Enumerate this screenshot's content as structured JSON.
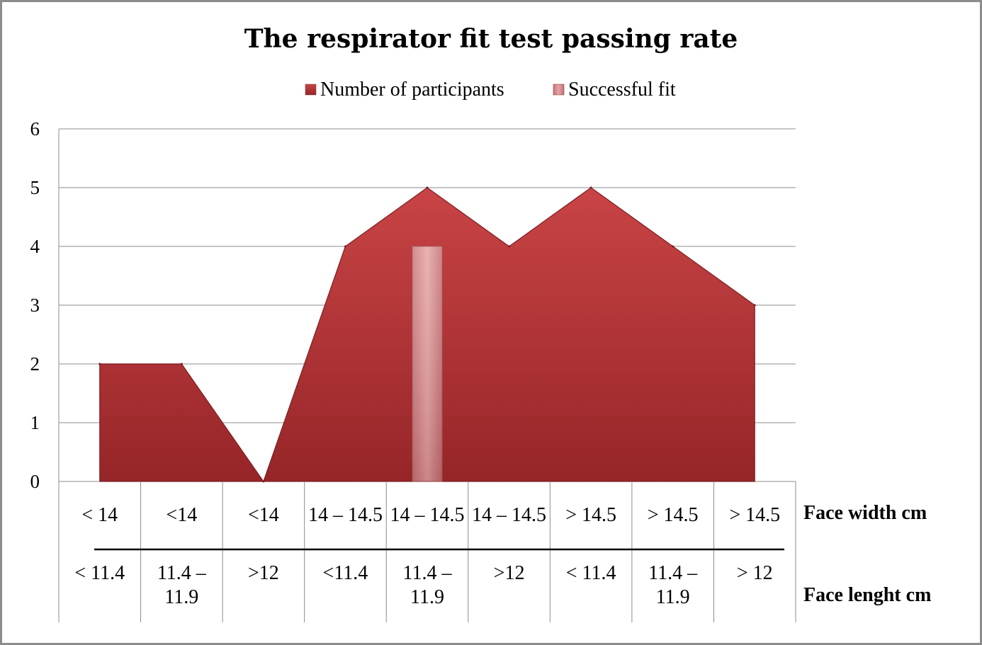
{
  "chart_data": {
    "type": "area",
    "title": "The respirator fit test passing rate",
    "legend_position": "top",
    "grid": true,
    "ylim": [
      0,
      6
    ],
    "y_ticks": [
      0,
      1,
      2,
      3,
      4,
      5,
      6
    ],
    "categories": [
      {
        "width": "< 14",
        "length": [
          "< 11.4"
        ]
      },
      {
        "width": "<14",
        "length": [
          "11.4 –",
          "11.9"
        ]
      },
      {
        "width": "<14",
        "length": [
          ">12"
        ]
      },
      {
        "width": "14 – 14.5",
        "length": [
          "<11.4"
        ]
      },
      {
        "width": "14 – 14.5",
        "length": [
          "11.4 –",
          "11.9"
        ]
      },
      {
        "width": "14 – 14.5",
        "length": [
          ">12"
        ]
      },
      {
        "width": "> 14.5",
        "length": [
          "< 11.4"
        ]
      },
      {
        "width": "> 14.5",
        "length": [
          "11.4 –",
          "11.9"
        ]
      },
      {
        "width": "> 14.5",
        "length": [
          "> 12"
        ]
      }
    ],
    "row_labels": [
      "Face width cm",
      "Face lenght cm"
    ],
    "series": [
      {
        "name": "Number of participants",
        "kind": "area",
        "color": "#c0393b",
        "values": [
          2,
          2,
          0,
          4,
          5,
          4,
          5,
          4,
          3
        ]
      },
      {
        "name": "Successful fit",
        "kind": "bar",
        "color": "#d9878a",
        "values": [
          0,
          0,
          0,
          0,
          4,
          0,
          0,
          0,
          0
        ]
      }
    ]
  }
}
